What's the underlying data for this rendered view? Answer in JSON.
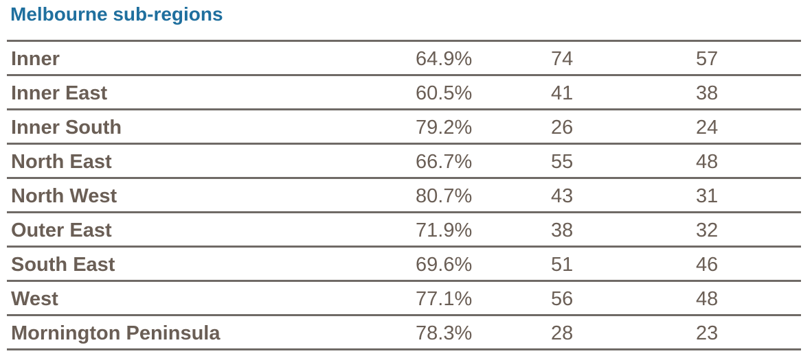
{
  "title": "Melbourne sub-regions",
  "rows": [
    {
      "region": "Inner",
      "percent": "64.9%",
      "value_a": "74",
      "value_b": "57"
    },
    {
      "region": "Inner East",
      "percent": "60.5%",
      "value_a": "41",
      "value_b": "38"
    },
    {
      "region": "Inner South",
      "percent": "79.2%",
      "value_a": "26",
      "value_b": "24"
    },
    {
      "region": "North East",
      "percent": "66.7%",
      "value_a": "55",
      "value_b": "48"
    },
    {
      "region": "North West",
      "percent": "80.7%",
      "value_a": "43",
      "value_b": "31"
    },
    {
      "region": "Outer East",
      "percent": "71.9%",
      "value_a": "38",
      "value_b": "32"
    },
    {
      "region": "South East",
      "percent": "69.6%",
      "value_a": "51",
      "value_b": "46"
    },
    {
      "region": "West",
      "percent": "77.1%",
      "value_a": "56",
      "value_b": "48"
    },
    {
      "region": "Mornington Peninsula",
      "percent": "78.3%",
      "value_a": "28",
      "value_b": "23"
    }
  ],
  "colors": {
    "title": "#1f6f9e",
    "text": "#6a5e55",
    "rule": "#6f6a66"
  }
}
